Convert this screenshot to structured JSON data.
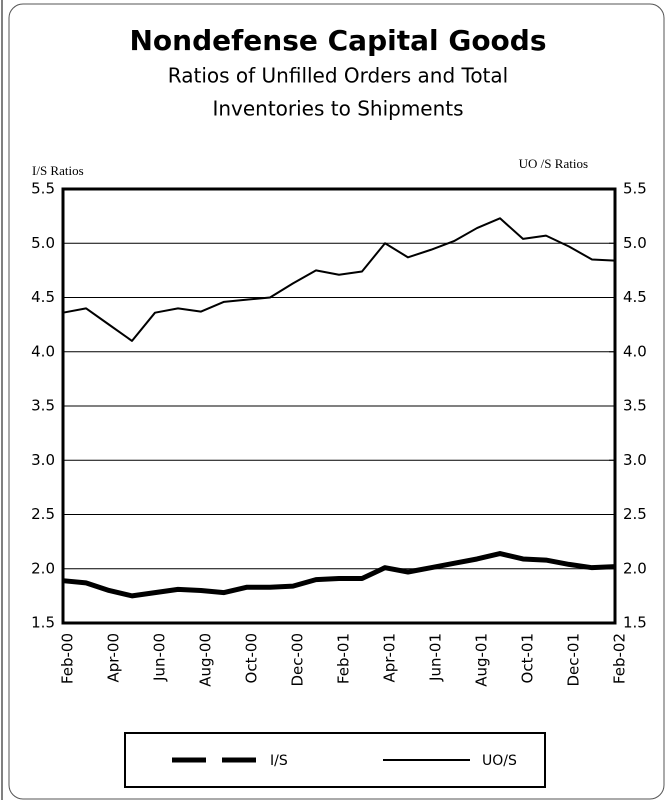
{
  "chart_data": {
    "type": "line",
    "title": "Nondefense Capital Goods",
    "subtitle": [
      "Ratios of Unfilled Orders and Total",
      "Inventories to Shipments"
    ],
    "y_label": "I/S Ratios",
    "y2_label": "UO /S Ratios",
    "categories": [
      "Feb-00",
      null,
      "Apr-00",
      null,
      "Jun-00",
      null,
      "Aug-00",
      null,
      "Oct-00",
      null,
      "Dec-00",
      null,
      "Feb-01",
      null,
      "Apr-01",
      null,
      "Jun-01",
      null,
      "Aug-01",
      null,
      "Oct-01",
      null,
      "Dec-01",
      null,
      "Feb-02"
    ],
    "series": [
      {
        "name": "I/S",
        "color": "#000000",
        "values": [
          1.89,
          1.87,
          1.8,
          1.75,
          1.78,
          1.81,
          1.8,
          1.78,
          1.83,
          1.83,
          1.84,
          1.9,
          1.91,
          1.91,
          2.01,
          1.97,
          2.01,
          2.05,
          2.09,
          2.14,
          2.09,
          2.08,
          2.04,
          2.01,
          2.02
        ]
      },
      {
        "name": "UO/S",
        "color": "#000000",
        "axis": "y2",
        "values": [
          4.36,
          4.4,
          4.25,
          4.1,
          4.36,
          4.4,
          4.37,
          4.46,
          4.48,
          4.5,
          4.63,
          4.75,
          4.71,
          4.74,
          5.0,
          4.87,
          4.94,
          5.02,
          5.14,
          5.23,
          5.04,
          5.07,
          4.97,
          4.85,
          4.84
        ]
      }
    ],
    "ylim": [
      1.5,
      5.5
    ],
    "yticks": [
      1.5,
      {
        "value": 2,
        "label": "2.0"
      },
      2.5,
      {
        "value": 3,
        "label": "3.0"
      },
      3.5,
      {
        "value": 4,
        "label": "4.0"
      },
      4.5,
      {
        "value": 5,
        "label": "5.0"
      },
      5.5
    ],
    "y2lim": [
      1.5,
      5.5
    ],
    "y2ticks": [
      1.5,
      {
        "value": 2,
        "label": "2.0"
      },
      2.5,
      {
        "value": 3,
        "label": "3.0"
      },
      3.5,
      {
        "value": 4,
        "label": "4.0"
      },
      4.5,
      {
        "value": 5,
        "label": "5.0"
      },
      5.5
    ],
    "grid": true
  }
}
